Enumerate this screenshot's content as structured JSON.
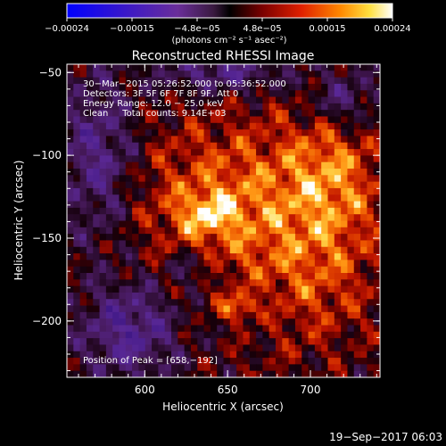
{
  "chart_data": {
    "type": "heatmap",
    "title": "Reconstructed RHESSI Image",
    "xlabel": "Heliocentric X (arcsec)",
    "ylabel": "Heliocentric Y (arcsec)",
    "xlim": [
      553,
      742
    ],
    "ylim": [
      -234,
      -45
    ],
    "x_ticks": [
      600,
      650,
      700
    ],
    "x_tick_labels": [
      "600",
      "650",
      "700"
    ],
    "y_ticks": [
      -50,
      -100,
      -150,
      -200
    ],
    "y_tick_labels": [
      "−50",
      "−100",
      "−150",
      "−200"
    ],
    "colorbar": {
      "colormap": "hot-blue-purple",
      "range": [
        -0.00024,
        0.00024
      ],
      "tick_labels": [
        "−0.00024",
        "−0.00015",
        "−4.8e−05",
        "4.8e−05",
        "0.00015",
        "0.00024"
      ],
      "units_label": "(photons cm⁻² s⁻¹ asec⁻²)"
    },
    "peak": [
      658,
      -192
    ],
    "annotations": [
      "30−Mar−2015 05:26:52.000 to 05:36:52.000",
      "Detectors: 3F 5F 6F 7F 8F 9F, Att 0",
      "Energy Range: 12.0 − 25.0 keV",
      "Clean     Total counts: 9.14E+03",
      "Position of Peak = [658,−192]"
    ],
    "grid": false
  },
  "footer_timestamp": "19−Sep−2017 06:03"
}
